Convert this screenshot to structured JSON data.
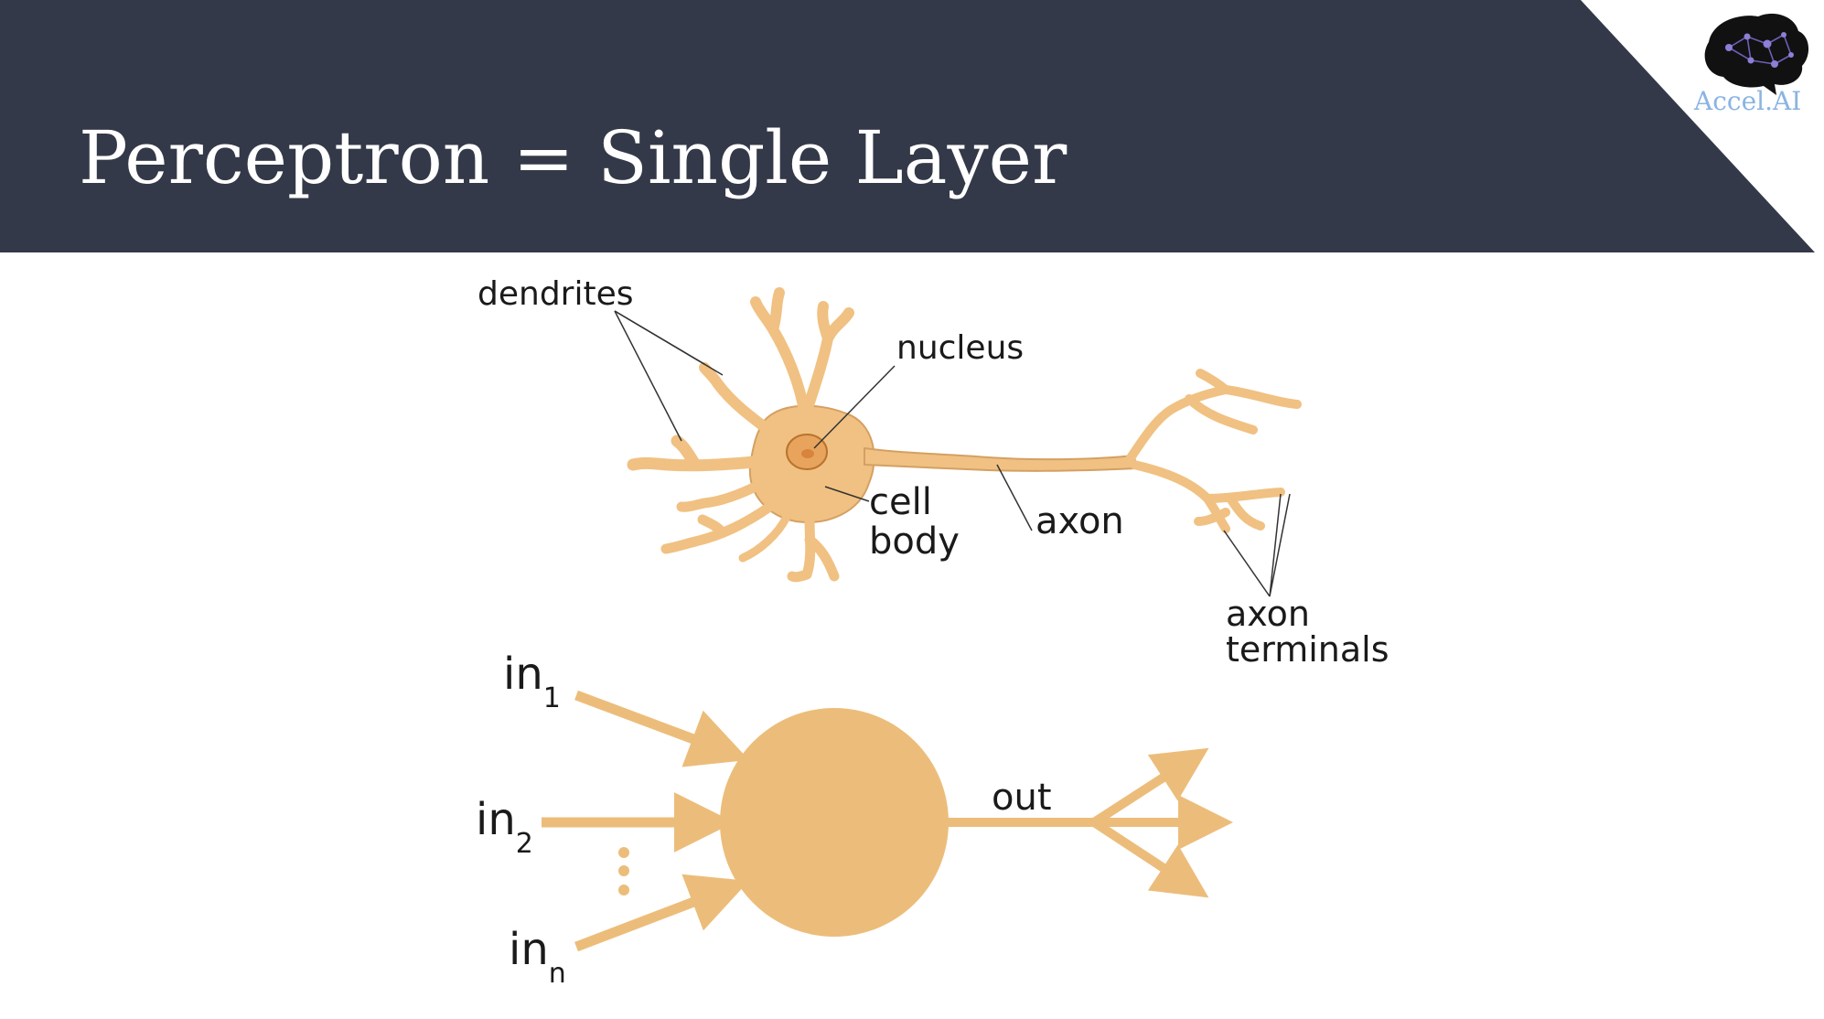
{
  "slide": {
    "title": "Perceptron = Single Layer",
    "header_color": "#343949",
    "accent_color": "#ECBD7A"
  },
  "logo": {
    "text": "Accel.AI",
    "icon": "brain-network-icon",
    "text_color": "#8AB4E3"
  },
  "neuron": {
    "labels": {
      "dendrites": "dendrites",
      "nucleus": "nucleus",
      "cell_line1": "cell",
      "cell_line2": "body",
      "axon": "axon",
      "terminals_line1": "axon",
      "terminals_line2": "terminals"
    },
    "fill_color": "#F0C182",
    "outline_color": "#D4A062",
    "nucleus_color": "#E8A45C"
  },
  "perceptron": {
    "inputs": [
      {
        "base": "in",
        "sub": "1"
      },
      {
        "base": "in",
        "sub": "2"
      },
      {
        "base": "in",
        "sub": "n"
      }
    ],
    "output": "out"
  }
}
